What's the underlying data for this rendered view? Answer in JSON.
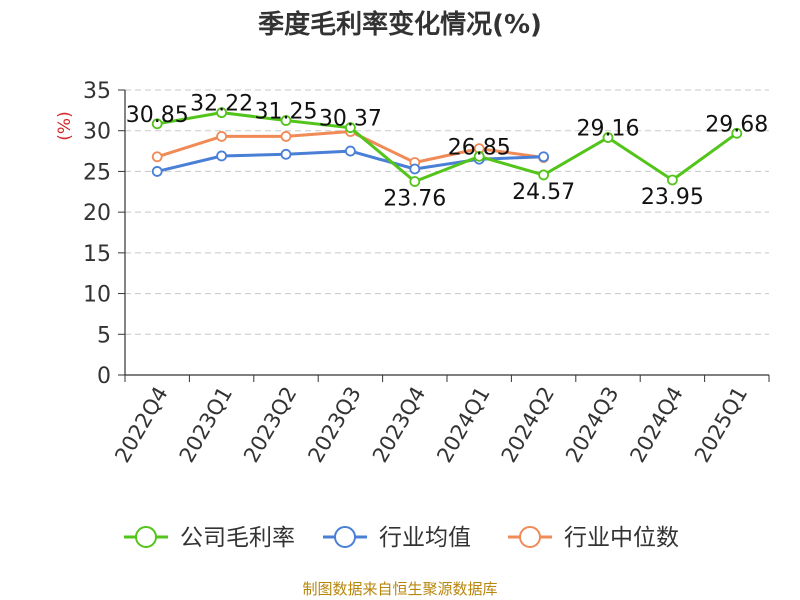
{
  "chart_data": {
    "type": "line",
    "title": "季度毛利率变化情况(%)",
    "ylabel": "(%)",
    "ylim": [
      0,
      35
    ],
    "yticks": [
      0,
      5,
      10,
      15,
      20,
      25,
      30,
      35
    ],
    "grid": true,
    "legend_position": "bottom",
    "source": "制图数据来自恒生聚源数据库",
    "categories": [
      "2022Q4",
      "2023Q1",
      "2023Q2",
      "2023Q3",
      "2023Q4",
      "2024Q1",
      "2024Q2",
      "2024Q3",
      "2024Q4",
      "2025Q1"
    ],
    "series": [
      {
        "name": "公司毛利率",
        "color": "#52c41a",
        "values": [
          30.85,
          32.22,
          31.25,
          30.37,
          23.76,
          26.85,
          24.57,
          29.16,
          23.95,
          29.68
        ],
        "labels": [
          "30.85",
          "32.22",
          "31.25",
          "30.37",
          "23.76",
          "26.85",
          "24.57",
          "29.16",
          "23.95",
          "29.68"
        ]
      },
      {
        "name": "行业均值",
        "color": "#4a7fd6",
        "values": [
          25.0,
          26.9,
          27.1,
          27.5,
          25.3,
          26.5,
          26.8,
          null,
          null,
          null
        ]
      },
      {
        "name": "行业中位数",
        "color": "#f08a57",
        "values": [
          26.8,
          29.3,
          29.3,
          29.9,
          26.1,
          27.8,
          26.7,
          null,
          null,
          null
        ]
      }
    ]
  }
}
